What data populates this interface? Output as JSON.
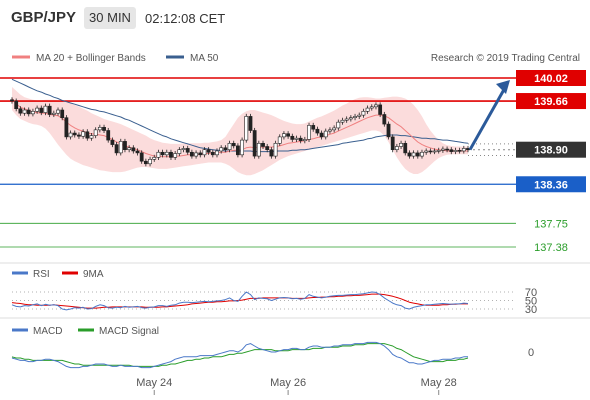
{
  "header": {
    "symbol": "GBP/JPY",
    "timeframe": "30 MIN",
    "time": "02:12:08 CET"
  },
  "colors": {
    "resistance": "#e00000",
    "support": "#1a5fc8",
    "pivot": "#2a9d2a",
    "current": "#333333",
    "ma20": "#f08080",
    "bollinger_fill": "#fbdcdc",
    "ma50": "#3a5f8f",
    "forecast_arrow": "#2b5a9a",
    "rsi": "#4a78c8",
    "rsi_ma": "#e00000",
    "macd": "#4a78c8",
    "macd_signal": "#2a9d2a"
  },
  "chart_data": [
    {
      "type": "line",
      "panel": "price",
      "legend": [
        {
          "label": "MA 20 + Bollinger Bands",
          "color": "#f08080"
        },
        {
          "label": "MA 50",
          "color": "#3a5f8f"
        }
      ],
      "copyright": "Research © 2019 Trading Central",
      "ylim": [
        137.3,
        140.15
      ],
      "levels": [
        {
          "value": 140.02,
          "label": "140.02",
          "kind": "resistance"
        },
        {
          "value": 139.66,
          "label": "139.66",
          "kind": "resistance"
        },
        {
          "value": 138.9,
          "label": "138.90",
          "kind": "current"
        },
        {
          "value": 138.36,
          "label": "138.36",
          "kind": "support"
        },
        {
          "value": 137.75,
          "label": "137.75",
          "kind": "pivot"
        },
        {
          "value": 137.38,
          "label": "137.38",
          "kind": "pivot"
        }
      ],
      "x_labels": [
        "May 24",
        "May 26",
        "May 28"
      ],
      "price_series": [
        139.66,
        139.54,
        139.47,
        139.52,
        139.46,
        139.5,
        139.55,
        139.48,
        139.58,
        139.45,
        139.47,
        139.52,
        139.4,
        139.1,
        139.16,
        139.13,
        139.11,
        139.18,
        139.08,
        139.12,
        139.21,
        139.25,
        139.2,
        139.05,
        138.98,
        138.85,
        139.03,
        138.9,
        138.93,
        138.88,
        138.85,
        138.72,
        138.68,
        138.75,
        138.78,
        138.86,
        138.82,
        138.86,
        138.78,
        138.84,
        138.9,
        138.92,
        138.86,
        138.8,
        138.85,
        138.82,
        138.9,
        138.86,
        138.82,
        138.88,
        138.93,
        138.9,
        139.0,
        138.96,
        138.82,
        139.05,
        139.42,
        139.2,
        138.8,
        139.0,
        138.95,
        138.9,
        138.8,
        139.0,
        139.1,
        139.15,
        139.11,
        139.06,
        139.08,
        139.04,
        139.06,
        139.28,
        139.22,
        139.16,
        139.1,
        139.19,
        139.21,
        139.24,
        139.33,
        139.36,
        139.38,
        139.4,
        139.42,
        139.44,
        139.5,
        139.55,
        139.57,
        139.6,
        139.45,
        139.3,
        139.1,
        138.9,
        138.95,
        139.0,
        138.85,
        138.8,
        138.85,
        138.8,
        138.86,
        138.88,
        138.87,
        138.88,
        138.89,
        138.91,
        138.9,
        138.87,
        138.89,
        138.88,
        138.92,
        138.9
      ],
      "ma20": [
        139.7,
        139.62,
        139.56,
        139.54,
        139.51,
        139.49,
        139.48,
        139.47,
        139.47,
        139.45,
        139.44,
        139.43,
        139.39,
        139.33,
        139.28,
        139.24,
        139.21,
        139.19,
        139.16,
        139.15,
        139.14,
        139.13,
        139.12,
        139.09,
        139.06,
        139.02,
        138.99,
        138.96,
        138.94,
        138.92,
        138.9,
        138.87,
        138.84,
        138.82,
        138.8,
        138.8,
        138.79,
        138.79,
        138.79,
        138.8,
        138.8,
        138.81,
        138.82,
        138.82,
        138.82,
        138.83,
        138.84,
        138.84,
        138.85,
        138.85,
        138.86,
        138.86,
        138.88,
        138.89,
        138.89,
        138.9,
        138.93,
        138.94,
        138.93,
        138.94,
        138.94,
        138.94,
        138.94,
        138.95,
        138.96,
        138.98,
        139.0,
        139.01,
        139.02,
        139.03,
        139.04,
        139.06,
        139.07,
        139.09,
        139.1,
        139.12,
        139.14,
        139.16,
        139.19,
        139.22,
        139.25,
        139.28,
        139.31,
        139.34,
        139.37,
        139.4,
        139.42,
        139.44,
        139.44,
        139.43,
        139.4,
        139.35,
        139.3,
        139.26,
        139.2,
        139.14,
        139.08,
        139.02,
        138.98,
        138.95,
        138.93,
        138.91,
        138.9,
        138.89,
        138.88,
        138.88,
        138.88,
        138.88,
        138.88,
        138.88
      ],
      "boll_upper": [
        139.88,
        139.82,
        139.76,
        139.72,
        139.7,
        139.68,
        139.67,
        139.67,
        139.68,
        139.68,
        139.68,
        139.67,
        139.66,
        139.65,
        139.63,
        139.6,
        139.57,
        139.54,
        139.51,
        139.47,
        139.44,
        139.41,
        139.38,
        139.36,
        139.34,
        139.32,
        139.3,
        139.27,
        139.24,
        139.21,
        139.18,
        139.15,
        139.12,
        139.08,
        139.05,
        139.03,
        139.01,
        139.0,
        138.99,
        138.99,
        138.99,
        139.0,
        139.0,
        139.0,
        139.0,
        139.0,
        139.01,
        139.01,
        139.02,
        139.03,
        139.05,
        139.1,
        139.2,
        139.3,
        139.4,
        139.46,
        139.5,
        139.52,
        139.52,
        139.5,
        139.48,
        139.46,
        139.44,
        139.41,
        139.38,
        139.35,
        139.33,
        139.31,
        139.3,
        139.3,
        139.31,
        139.34,
        139.37,
        139.4,
        139.42,
        139.45,
        139.48,
        139.51,
        139.55,
        139.59,
        139.62,
        139.66,
        139.69,
        139.71,
        139.72,
        139.72,
        139.71,
        139.7,
        139.7,
        139.71,
        139.72,
        139.73,
        139.73,
        139.72,
        139.7,
        139.66,
        139.6,
        139.52,
        139.42,
        139.3,
        139.2,
        139.12,
        139.05,
        139.0,
        138.97,
        138.96,
        138.95,
        138.95,
        138.95,
        138.95
      ],
      "boll_lower": [
        139.52,
        139.44,
        139.38,
        139.35,
        139.32,
        139.3,
        139.29,
        139.27,
        139.23,
        139.16,
        139.07,
        138.98,
        138.9,
        138.82,
        138.76,
        138.72,
        138.69,
        138.66,
        138.64,
        138.62,
        138.6,
        138.58,
        138.57,
        138.56,
        138.55,
        138.55,
        138.55,
        138.56,
        138.58,
        138.6,
        138.62,
        138.63,
        138.63,
        138.62,
        138.61,
        138.6,
        138.6,
        138.6,
        138.61,
        138.62,
        138.63,
        138.64,
        138.65,
        138.66,
        138.67,
        138.68,
        138.69,
        138.7,
        138.7,
        138.7,
        138.7,
        138.68,
        138.65,
        138.6,
        138.55,
        138.52,
        138.5,
        138.5,
        138.52,
        138.55,
        138.58,
        138.62,
        138.66,
        138.7,
        138.74,
        138.77,
        138.8,
        138.82,
        138.84,
        138.86,
        138.88,
        138.9,
        138.92,
        138.94,
        138.96,
        138.98,
        139.0,
        139.02,
        139.04,
        139.06,
        139.08,
        139.1,
        139.12,
        139.14,
        139.16,
        139.18,
        139.2,
        139.2,
        139.18,
        139.12,
        139.02,
        138.9,
        138.78,
        138.68,
        138.6,
        138.55,
        138.52,
        138.52,
        138.55,
        138.6,
        138.66,
        138.72,
        138.77,
        138.8,
        138.82,
        138.83,
        138.83,
        138.83,
        138.83,
        138.83
      ],
      "ma50": [
        140.0,
        139.97,
        139.94,
        139.91,
        139.88,
        139.85,
        139.82,
        139.8,
        139.77,
        139.75,
        139.72,
        139.7,
        139.67,
        139.65,
        139.63,
        139.61,
        139.59,
        139.57,
        139.55,
        139.53,
        139.52,
        139.5,
        139.49,
        139.47,
        139.45,
        139.43,
        139.41,
        139.38,
        139.36,
        139.33,
        139.3,
        139.27,
        139.24,
        139.21,
        139.18,
        139.15,
        139.12,
        139.1,
        139.07,
        139.05,
        139.03,
        139.01,
        138.99,
        138.97,
        138.95,
        138.93,
        138.92,
        138.91,
        138.9,
        138.89,
        138.89,
        138.88,
        138.88,
        138.88,
        138.88,
        138.88,
        138.88,
        138.88,
        138.87,
        138.87,
        138.87,
        138.87,
        138.87,
        138.88,
        138.88,
        138.88,
        138.88,
        138.89,
        138.89,
        138.9,
        138.9,
        138.91,
        138.92,
        138.93,
        138.94,
        138.95,
        138.96,
        138.97,
        138.98,
        139.0,
        139.01,
        139.02,
        139.03,
        139.04,
        139.05,
        139.07,
        139.08,
        139.1,
        139.11,
        139.12,
        139.13,
        139.13,
        139.13,
        139.12,
        139.12,
        139.11,
        139.1,
        139.09,
        139.08,
        139.08,
        139.07,
        139.07,
        139.06,
        139.05,
        139.05,
        139.04,
        139.03,
        139.02,
        139.01,
        139.0
      ],
      "forecast": {
        "from": 138.9,
        "to": 140.02
      }
    },
    {
      "type": "line",
      "panel": "rsi",
      "legend": [
        {
          "label": "RSI",
          "color": "#4a78c8"
        },
        {
          "label": "9MA",
          "color": "#e00000"
        }
      ],
      "ylim": [
        20,
        80
      ],
      "y_ticks": [
        "70",
        "50",
        "30"
      ],
      "y_tick_values": [
        70,
        50,
        30
      ],
      "rsi": [
        40,
        36,
        35,
        38,
        37,
        40,
        42,
        38,
        41,
        39,
        40,
        38,
        30,
        28,
        30,
        33,
        32,
        34,
        30,
        31,
        36,
        40,
        38,
        33,
        32,
        34,
        33,
        36,
        34,
        35,
        36,
        33,
        32,
        34,
        35,
        38,
        38,
        36,
        39,
        40,
        44,
        46,
        46,
        45,
        46,
        47,
        48,
        47,
        48,
        49,
        50,
        52,
        56,
        50,
        48,
        60,
        70,
        64,
        52,
        56,
        55,
        54,
        50,
        53,
        56,
        57,
        56,
        54,
        55,
        53,
        55,
        64,
        60,
        58,
        56,
        58,
        60,
        61,
        62,
        62,
        63,
        64,
        64,
        65,
        66,
        68,
        70,
        69,
        64,
        56,
        50,
        44,
        40,
        38,
        32,
        30,
        34,
        36,
        38,
        40,
        40,
        41,
        42,
        43,
        42,
        41,
        42,
        42,
        44,
        43
      ],
      "ma9": [
        45,
        44,
        43,
        41,
        40,
        40,
        39,
        39,
        39,
        39,
        40,
        39,
        38,
        37,
        36,
        35,
        34,
        33,
        32,
        32,
        32,
        33,
        34,
        34,
        35,
        35,
        35,
        35,
        35,
        35,
        35,
        35,
        34,
        34,
        34,
        34,
        35,
        35,
        36,
        37,
        38,
        39,
        40,
        42,
        43,
        44,
        45,
        46,
        46,
        47,
        47,
        48,
        49,
        49,
        50,
        51,
        53,
        55,
        55,
        55,
        56,
        56,
        56,
        56,
        56,
        56,
        56,
        55,
        55,
        55,
        55,
        56,
        57,
        57,
        58,
        58,
        59,
        59,
        60,
        60,
        61,
        61,
        62,
        62,
        63,
        64,
        65,
        65,
        65,
        64,
        62,
        60,
        57,
        54,
        50,
        46,
        44,
        42,
        40,
        39,
        39,
        39,
        39,
        40,
        40,
        41,
        41,
        42,
        42,
        42
      ]
    },
    {
      "type": "line",
      "panel": "macd",
      "legend": [
        {
          "label": "MACD",
          "color": "#4a78c8"
        },
        {
          "label": "MACD Signal",
          "color": "#2a9d2a"
        }
      ],
      "ylim": [
        -0.22,
        0.14
      ],
      "y_ticks": [
        "0"
      ],
      "y_tick_values": [
        0
      ],
      "macd": [
        -0.05,
        -0.06,
        -0.07,
        -0.07,
        -0.08,
        -0.08,
        -0.07,
        -0.07,
        -0.06,
        -0.06,
        -0.07,
        -0.08,
        -0.1,
        -0.12,
        -0.13,
        -0.13,
        -0.13,
        -0.12,
        -0.12,
        -0.11,
        -0.1,
        -0.1,
        -0.1,
        -0.11,
        -0.12,
        -0.12,
        -0.11,
        -0.12,
        -0.12,
        -0.12,
        -0.12,
        -0.13,
        -0.13,
        -0.13,
        -0.12,
        -0.11,
        -0.1,
        -0.09,
        -0.08,
        -0.06,
        -0.05,
        -0.04,
        -0.04,
        -0.04,
        -0.04,
        -0.03,
        -0.03,
        -0.03,
        -0.03,
        -0.02,
        -0.01,
        0.0,
        0.01,
        0.01,
        0.0,
        0.02,
        0.06,
        0.07,
        0.05,
        0.03,
        0.02,
        0.01,
        0.0,
        0.0,
        0.01,
        0.02,
        0.02,
        0.03,
        0.03,
        0.02,
        0.02,
        0.04,
        0.05,
        0.05,
        0.04,
        0.04,
        0.04,
        0.05,
        0.05,
        0.06,
        0.06,
        0.06,
        0.07,
        0.07,
        0.07,
        0.08,
        0.08,
        0.08,
        0.07,
        0.05,
        0.02,
        -0.02,
        -0.04,
        -0.05,
        -0.07,
        -0.09,
        -0.09,
        -0.1,
        -0.1,
        -0.09,
        -0.08,
        -0.07,
        -0.07,
        -0.06,
        -0.06,
        -0.06,
        -0.05,
        -0.05,
        -0.04,
        -0.04
      ],
      "signal": [
        -0.04,
        -0.05,
        -0.05,
        -0.06,
        -0.06,
        -0.07,
        -0.07,
        -0.07,
        -0.07,
        -0.07,
        -0.07,
        -0.07,
        -0.07,
        -0.08,
        -0.09,
        -0.1,
        -0.1,
        -0.11,
        -0.11,
        -0.11,
        -0.11,
        -0.11,
        -0.11,
        -0.11,
        -0.11,
        -0.11,
        -0.11,
        -0.11,
        -0.11,
        -0.12,
        -0.12,
        -0.12,
        -0.12,
        -0.12,
        -0.12,
        -0.12,
        -0.11,
        -0.11,
        -0.1,
        -0.1,
        -0.09,
        -0.08,
        -0.07,
        -0.07,
        -0.06,
        -0.06,
        -0.05,
        -0.05,
        -0.04,
        -0.04,
        -0.04,
        -0.03,
        -0.02,
        -0.02,
        -0.01,
        -0.01,
        0.0,
        0.01,
        0.02,
        0.02,
        0.02,
        0.02,
        0.02,
        0.01,
        0.01,
        0.01,
        0.01,
        0.02,
        0.02,
        0.02,
        0.02,
        0.02,
        0.03,
        0.03,
        0.03,
        0.04,
        0.04,
        0.04,
        0.04,
        0.05,
        0.05,
        0.05,
        0.06,
        0.06,
        0.06,
        0.07,
        0.07,
        0.07,
        0.07,
        0.07,
        0.06,
        0.05,
        0.03,
        0.02,
        0.0,
        -0.02,
        -0.04,
        -0.05,
        -0.06,
        -0.07,
        -0.08,
        -0.08,
        -0.08,
        -0.08,
        -0.07,
        -0.07,
        -0.07,
        -0.06,
        -0.06,
        -0.05
      ]
    }
  ]
}
